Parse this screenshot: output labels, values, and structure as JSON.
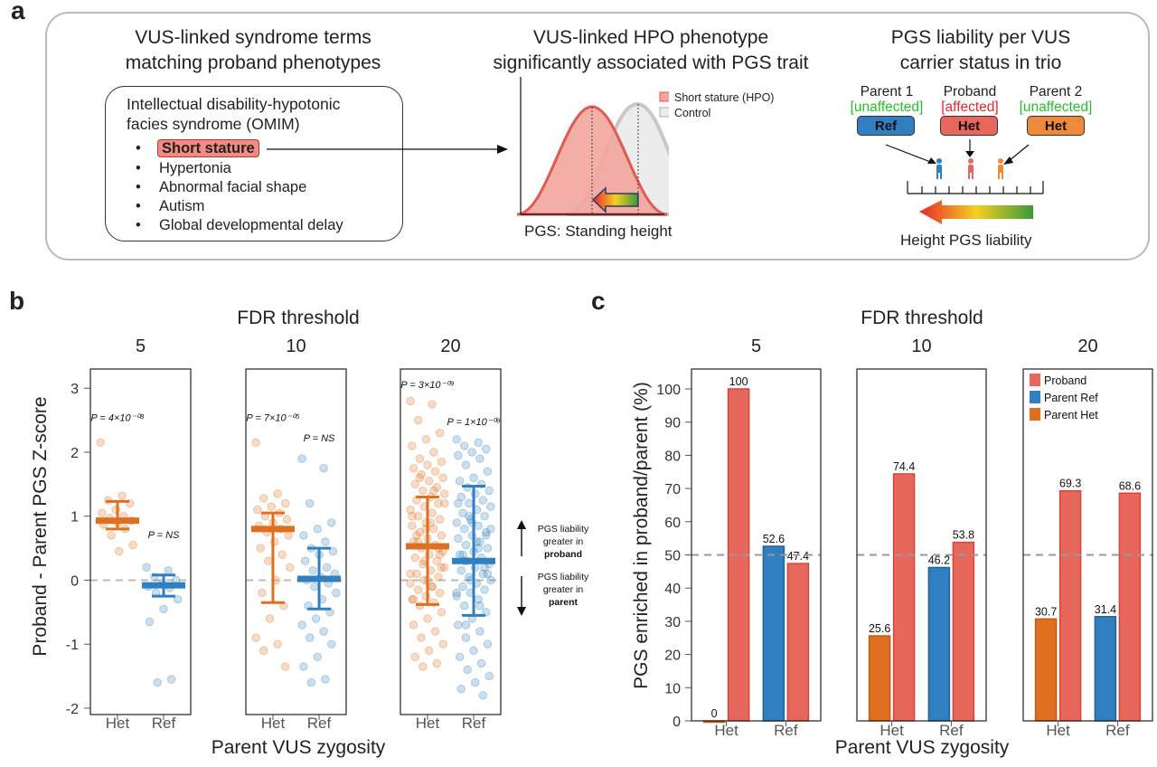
{
  "panel_a": {
    "label": "a",
    "col1_title": [
      "VUS-linked syndrome terms",
      "matching proband phenotypes"
    ],
    "col2_title": [
      "VUS-linked HPO phenotype",
      "significantly associated with PGS trait"
    ],
    "col3_title": [
      "PGS liability per VUS",
      "carrier status in trio"
    ],
    "syndrome_title": [
      "Intellectual disability-hypotonic",
      "facies syndrome (OMIM)"
    ],
    "syndrome_terms": [
      "Short stature",
      "Hypertonia",
      "Abnormal facial shape",
      "Autism",
      "Global developmental delay"
    ],
    "legend": [
      "Short stature (HPO)",
      "Control"
    ],
    "dist_xlabel": "PGS: Standing height",
    "trio": [
      {
        "name": "Parent 1",
        "status": "[unaffected]",
        "geno": "Ref",
        "color": "#2f7fc1",
        "status_color": "#22c322"
      },
      {
        "name": "Proband",
        "status": "[affected]",
        "geno": "Het",
        "color": "#e8675c",
        "status_color": "#e8262a"
      },
      {
        "name": "Parent 2",
        "status": "[unaffected]",
        "geno": "Het",
        "color": "#ee8a3a",
        "status_color": "#22c322"
      }
    ],
    "liability_label": "Height PGS liability"
  },
  "panel_b": {
    "label": "b",
    "title": "FDR threshold",
    "ylabel": "Proband - Parent PGS Z-score",
    "xlabel": "Parent VUS zygosity",
    "yticks": [
      "3",
      "2",
      "1",
      "0",
      "-1",
      "-2"
    ],
    "annot_up": [
      "PGS liability",
      "greater in",
      "proband"
    ],
    "annot_down": [
      "PGS liability",
      "greater in",
      "parent"
    ]
  },
  "panel_c": {
    "label": "c",
    "title": "FDR threshold",
    "ylabel": "PGS enriched in proband/parent (%)",
    "xlabel": "Parent VUS zygosity",
    "yticks": [
      "0",
      "10",
      "20",
      "30",
      "40",
      "50",
      "60",
      "70",
      "80",
      "90",
      "100"
    ],
    "legend": [
      "Proband",
      "Parent Ref",
      "Parent Het"
    ]
  },
  "chart_data": [
    {
      "type": "scatter",
      "title": "FDR threshold",
      "ylabel": "Proband - Parent PGS Z-score",
      "xlabel": "Parent VUS zygosity",
      "ylim": [
        -2.1,
        3.3
      ],
      "reference_line_y": 0,
      "colors": {
        "Het": "#e07020",
        "Ref": "#2f7fc1"
      },
      "facets": [
        {
          "threshold": "5",
          "groups": [
            {
              "x": "Het",
              "p_label": "P = 4×10⁻⁰⁸",
              "median": 0.93,
              "low": 0.8,
              "high": 1.23,
              "points": [
                2.15,
                1.32,
                1.25,
                1.2,
                1.1,
                1.05,
                1.0,
                0.97,
                0.93,
                0.9,
                0.87,
                0.8,
                0.7,
                0.55,
                0.45
              ]
            },
            {
              "x": "Ref",
              "p_label": "P = NS",
              "median": -0.08,
              "low": -0.25,
              "high": 0.08,
              "points": [
                0.2,
                0.15,
                0.05,
                0.0,
                -0.05,
                -0.1,
                -0.12,
                -0.2,
                -0.3,
                -0.45,
                -0.65,
                -1.55,
                -1.6
              ]
            }
          ]
        },
        {
          "threshold": "10",
          "groups": [
            {
              "x": "Het",
              "p_label": "P = 7×10⁻⁰⁵",
              "median": 0.8,
              "low": -0.35,
              "high": 1.05,
              "points": [
                2.15,
                1.35,
                1.28,
                1.2,
                1.15,
                1.1,
                1.05,
                1.0,
                0.95,
                0.9,
                0.85,
                0.8,
                0.75,
                0.7,
                0.6,
                0.5,
                0.4,
                0.3,
                0.2,
                0.0,
                -0.2,
                -0.4,
                -0.6,
                -0.9,
                -1.0,
                -1.1,
                -1.35
              ]
            },
            {
              "x": "Ref",
              "p_label": "P = NS",
              "median": 0.02,
              "low": -0.45,
              "high": 0.5,
              "points": [
                1.9,
                1.75,
                1.2,
                0.9,
                0.8,
                0.7,
                0.6,
                0.5,
                0.45,
                0.4,
                0.3,
                0.2,
                0.15,
                0.1,
                0.05,
                0.0,
                -0.05,
                -0.1,
                -0.2,
                -0.3,
                -0.4,
                -0.5,
                -0.6,
                -0.7,
                -0.8,
                -0.9,
                -1.0,
                -1.2,
                -1.35,
                -1.55,
                -1.6
              ]
            }
          ]
        },
        {
          "threshold": "20",
          "groups": [
            {
              "x": "Het",
              "p_label": "P = 3×10⁻⁰⁹",
              "median": 0.53,
              "low": -0.38,
              "high": 1.3,
              "points": [
                2.8,
                2.75,
                2.5,
                2.3,
                2.2,
                2.1,
                2.0,
                1.9,
                1.85,
                1.8,
                1.75,
                1.7,
                1.65,
                1.6,
                1.55,
                1.5,
                1.45,
                1.4,
                1.35,
                1.3,
                1.25,
                1.2,
                1.15,
                1.1,
                1.05,
                1.0,
                0.95,
                0.9,
                0.85,
                0.8,
                0.75,
                0.7,
                0.65,
                0.6,
                0.55,
                0.5,
                0.45,
                0.4,
                0.35,
                0.3,
                0.25,
                0.2,
                0.15,
                0.1,
                0.05,
                0.0,
                -0.05,
                -0.1,
                -0.15,
                -0.2,
                -0.25,
                -0.3,
                -0.35,
                -0.4,
                -0.5,
                -0.6,
                -0.7,
                -0.8,
                -0.9,
                -1.0,
                -1.1,
                -1.2,
                -1.3,
                -1.35,
                1.2,
                0.9,
                0.7,
                0.5,
                0.3,
                0.1,
                -0.1,
                0.6,
                0.4,
                0.8,
                1.0,
                1.4,
                1.6,
                0.2,
                0.0,
                -0.3
              ]
            },
            {
              "x": "Ref",
              "p_label": "P = 1×10⁻⁰⁶",
              "median": 0.3,
              "low": -0.55,
              "high": 1.47,
              "points": [
                2.2,
                2.15,
                2.1,
                2.05,
                2.0,
                1.95,
                1.9,
                1.8,
                1.7,
                1.6,
                1.55,
                1.5,
                1.45,
                1.4,
                1.35,
                1.3,
                1.25,
                1.2,
                1.15,
                1.1,
                1.05,
                1.0,
                0.95,
                0.9,
                0.85,
                0.8,
                0.75,
                0.7,
                0.65,
                0.6,
                0.55,
                0.5,
                0.45,
                0.4,
                0.35,
                0.3,
                0.25,
                0.2,
                0.15,
                0.1,
                0.05,
                0.0,
                -0.05,
                -0.1,
                -0.15,
                -0.2,
                -0.25,
                -0.3,
                -0.4,
                -0.5,
                -0.6,
                -0.7,
                -0.8,
                -0.9,
                -1.0,
                -1.1,
                -1.2,
                -1.3,
                -1.4,
                -1.5,
                -1.6,
                -1.7,
                -1.8,
                1.0,
                0.8,
                0.6,
                0.4,
                0.2,
                0.0,
                -0.2,
                0.5,
                0.3,
                0.7,
                0.9,
                1.2,
                -0.4,
                -0.7,
                0.1
              ]
            }
          ]
        }
      ]
    },
    {
      "type": "bar",
      "title": "FDR threshold",
      "ylabel": "PGS enriched in proband/parent (%)",
      "xlabel": "Parent VUS zygosity",
      "ylim": [
        0,
        106
      ],
      "reference_line_y": 50,
      "legend": [
        "Proband",
        "Parent Ref",
        "Parent Het"
      ],
      "colors": {
        "Proband": "#e8675c",
        "Parent Ref": "#2f7fc1",
        "Parent Het": "#e07020"
      },
      "facets": [
        {
          "threshold": "5",
          "groups": [
            {
              "x": "Het",
              "bars": [
                {
                  "series": "Parent Het",
                  "value": 0,
                  "label": "0"
                },
                {
                  "series": "Proband",
                  "value": 100,
                  "label": "100"
                }
              ]
            },
            {
              "x": "Ref",
              "bars": [
                {
                  "series": "Parent Ref",
                  "value": 52.6,
                  "label": "52.6"
                },
                {
                  "series": "Proband",
                  "value": 47.4,
                  "label": "47.4"
                }
              ]
            }
          ]
        },
        {
          "threshold": "10",
          "groups": [
            {
              "x": "Het",
              "bars": [
                {
                  "series": "Parent Het",
                  "value": 25.6,
                  "label": "25.6"
                },
                {
                  "series": "Proband",
                  "value": 74.4,
                  "label": "74.4"
                }
              ]
            },
            {
              "x": "Ref",
              "bars": [
                {
                  "series": "Parent Ref",
                  "value": 46.2,
                  "label": "46.2"
                },
                {
                  "series": "Proband",
                  "value": 53.8,
                  "label": "53.8"
                }
              ]
            }
          ]
        },
        {
          "threshold": "20",
          "groups": [
            {
              "x": "Het",
              "bars": [
                {
                  "series": "Parent Het",
                  "value": 30.7,
                  "label": "30.7"
                },
                {
                  "series": "Proband",
                  "value": 69.3,
                  "label": "69.3"
                }
              ]
            },
            {
              "x": "Ref",
              "bars": [
                {
                  "series": "Parent Ref",
                  "value": 31.4,
                  "label": "31.4"
                },
                {
                  "series": "Proband",
                  "value": 68.6,
                  "label": "68.6"
                }
              ]
            }
          ]
        }
      ]
    }
  ]
}
